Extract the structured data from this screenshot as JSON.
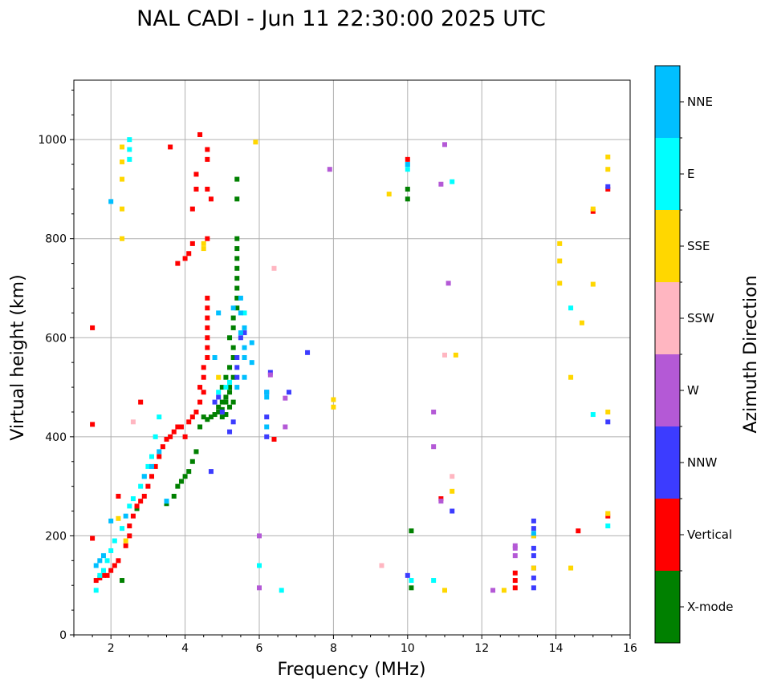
{
  "chart_data": {
    "type": "scatter",
    "title": "NAL CADI - Jun 11 22:30:00 2025 UTC",
    "xlabel": "Frequency (MHz)",
    "ylabel": "Virtual height (km)",
    "xlim": [
      1,
      16
    ],
    "ylim": [
      0,
      1120
    ],
    "xticks": [
      2,
      4,
      6,
      8,
      10,
      12,
      14,
      16
    ],
    "yticks": [
      0,
      200,
      400,
      600,
      800,
      1000
    ],
    "grid": true,
    "colorbar": {
      "title": "Azimuth Direction",
      "categories": [
        {
          "name": "X-mode",
          "color": "#008000"
        },
        {
          "name": "Vertical",
          "color": "#ff0000"
        },
        {
          "name": "NNW",
          "color": "#3c3cff"
        },
        {
          "name": "W",
          "color": "#b459d6"
        },
        {
          "name": "SSW",
          "color": "#ffb6c1"
        },
        {
          "name": "SSE",
          "color": "#ffd700"
        },
        {
          "name": "E",
          "color": "#00ffff"
        },
        {
          "name": "NNE",
          "color": "#00bfff"
        }
      ]
    },
    "series": [
      {
        "name": "X-mode",
        "points": [
          [
            2.3,
            110
          ],
          [
            2.7,
            255
          ],
          [
            3.5,
            265
          ],
          [
            3.7,
            280
          ],
          [
            3.8,
            300
          ],
          [
            3.9,
            310
          ],
          [
            4.0,
            320
          ],
          [
            4.1,
            330
          ],
          [
            4.2,
            350
          ],
          [
            4.3,
            370
          ],
          [
            4.4,
            420
          ],
          [
            4.5,
            440
          ],
          [
            4.6,
            435
          ],
          [
            4.7,
            440
          ],
          [
            4.8,
            445
          ],
          [
            4.9,
            450
          ],
          [
            5.0,
            455
          ],
          [
            5.0,
            470
          ],
          [
            5.1,
            470
          ],
          [
            5.1,
            480
          ],
          [
            5.2,
            490
          ],
          [
            5.2,
            500
          ],
          [
            5.3,
            520
          ],
          [
            5.2,
            540
          ],
          [
            5.3,
            560
          ],
          [
            5.3,
            580
          ],
          [
            5.2,
            600
          ],
          [
            5.3,
            620
          ],
          [
            5.3,
            640
          ],
          [
            5.4,
            660
          ],
          [
            5.4,
            680
          ],
          [
            5.4,
            700
          ],
          [
            5.4,
            720
          ],
          [
            5.4,
            740
          ],
          [
            5.4,
            760
          ],
          [
            5.4,
            780
          ],
          [
            5.4,
            800
          ],
          [
            5.4,
            880
          ],
          [
            5.4,
            920
          ],
          [
            10.0,
            880
          ],
          [
            10.0,
            900
          ],
          [
            10.1,
            210
          ],
          [
            10.1,
            95
          ],
          [
            4.9,
            460
          ],
          [
            5.0,
            440
          ],
          [
            5.1,
            445
          ],
          [
            5.2,
            460
          ],
          [
            5.3,
            470
          ],
          [
            5.0,
            500
          ],
          [
            5.1,
            520
          ]
        ]
      },
      {
        "name": "Vertical",
        "points": [
          [
            1.5,
            620
          ],
          [
            1.5,
            425
          ],
          [
            1.6,
            110
          ],
          [
            1.7,
            115
          ],
          [
            1.8,
            120
          ],
          [
            1.9,
            120
          ],
          [
            2.0,
            130
          ],
          [
            2.1,
            140
          ],
          [
            2.2,
            150
          ],
          [
            2.4,
            180
          ],
          [
            2.5,
            200
          ],
          [
            2.5,
            220
          ],
          [
            2.6,
            240
          ],
          [
            2.7,
            260
          ],
          [
            2.8,
            270
          ],
          [
            2.9,
            280
          ],
          [
            3.0,
            300
          ],
          [
            3.1,
            320
          ],
          [
            3.2,
            340
          ],
          [
            3.3,
            360
          ],
          [
            3.4,
            380
          ],
          [
            3.5,
            395
          ],
          [
            3.6,
            400
          ],
          [
            3.7,
            410
          ],
          [
            3.8,
            420
          ],
          [
            3.9,
            420
          ],
          [
            4.0,
            400
          ],
          [
            4.1,
            430
          ],
          [
            4.2,
            440
          ],
          [
            4.3,
            450
          ],
          [
            4.4,
            470
          ],
          [
            4.5,
            490
          ],
          [
            4.4,
            500
          ],
          [
            4.5,
            520
          ],
          [
            4.5,
            540
          ],
          [
            4.6,
            560
          ],
          [
            4.6,
            580
          ],
          [
            4.6,
            600
          ],
          [
            4.6,
            620
          ],
          [
            4.6,
            640
          ],
          [
            4.6,
            660
          ],
          [
            4.6,
            680
          ],
          [
            3.8,
            750
          ],
          [
            4.0,
            760
          ],
          [
            4.1,
            770
          ],
          [
            4.2,
            790
          ],
          [
            4.6,
            800
          ],
          [
            4.2,
            860
          ],
          [
            4.3,
            900
          ],
          [
            4.3,
            930
          ],
          [
            4.4,
            1010
          ],
          [
            4.6,
            960
          ],
          [
            4.6,
            980
          ],
          [
            3.6,
            985
          ],
          [
            4.6,
            900
          ],
          [
            4.7,
            880
          ],
          [
            2.8,
            470
          ],
          [
            2.2,
            280
          ],
          [
            1.5,
            195
          ],
          [
            6.4,
            395
          ],
          [
            10.0,
            960
          ],
          [
            12.9,
            95
          ],
          [
            12.9,
            110
          ],
          [
            12.9,
            125
          ],
          [
            15.0,
            855
          ],
          [
            15.4,
            900
          ],
          [
            14.6,
            210
          ],
          [
            15.4,
            240
          ],
          [
            10.9,
            275
          ]
        ]
      },
      {
        "name": "NNW",
        "points": [
          [
            5.2,
            410
          ],
          [
            5.3,
            430
          ],
          [
            5.0,
            450
          ],
          [
            4.9,
            480
          ],
          [
            4.8,
            470
          ],
          [
            5.4,
            520
          ],
          [
            5.4,
            540
          ],
          [
            5.4,
            560
          ],
          [
            5.5,
            600
          ],
          [
            5.6,
            610
          ],
          [
            6.2,
            400
          ],
          [
            6.2,
            440
          ],
          [
            6.2,
            490
          ],
          [
            6.3,
            530
          ],
          [
            6.8,
            490
          ],
          [
            13.4,
            95
          ],
          [
            13.4,
            115
          ],
          [
            13.4,
            135
          ],
          [
            13.4,
            160
          ],
          [
            13.4,
            175
          ],
          [
            13.4,
            200
          ],
          [
            13.4,
            215
          ],
          [
            13.4,
            230
          ],
          [
            15.4,
            430
          ],
          [
            15.4,
            905
          ],
          [
            7.3,
            570
          ],
          [
            10.0,
            120
          ],
          [
            11.2,
            250
          ],
          [
            4.7,
            330
          ]
        ]
      },
      {
        "name": "W",
        "points": [
          [
            6.3,
            525
          ],
          [
            6.7,
            420
          ],
          [
            6.7,
            478
          ],
          [
            7.9,
            940
          ],
          [
            10.7,
            380
          ],
          [
            10.7,
            450
          ],
          [
            10.9,
            910
          ],
          [
            11.0,
            990
          ],
          [
            11.1,
            710
          ],
          [
            12.3,
            90
          ],
          [
            12.9,
            160
          ],
          [
            12.9,
            175
          ],
          [
            12.9,
            180
          ],
          [
            6.0,
            95
          ],
          [
            6.0,
            200
          ],
          [
            10.9,
            270
          ]
        ]
      },
      {
        "name": "SSW",
        "points": [
          [
            6.4,
            740
          ],
          [
            11.0,
            565
          ],
          [
            11.2,
            320
          ],
          [
            9.3,
            140
          ],
          [
            2.6,
            430
          ],
          [
            15.4,
            245
          ]
        ]
      },
      {
        "name": "SSE",
        "points": [
          [
            2.3,
            860
          ],
          [
            2.3,
            920
          ],
          [
            2.3,
            955
          ],
          [
            2.3,
            985
          ],
          [
            2.3,
            800
          ],
          [
            4.5,
            790
          ],
          [
            4.5,
            780
          ],
          [
            4.9,
            520
          ],
          [
            8.0,
            460
          ],
          [
            8.0,
            475
          ],
          [
            9.5,
            890
          ],
          [
            11.0,
            90
          ],
          [
            11.2,
            290
          ],
          [
            11.3,
            565
          ],
          [
            12.6,
            90
          ],
          [
            13.4,
            135
          ],
          [
            13.4,
            200
          ],
          [
            14.1,
            710
          ],
          [
            14.1,
            755
          ],
          [
            14.1,
            790
          ],
          [
            14.4,
            135
          ],
          [
            14.4,
            520
          ],
          [
            14.7,
            630
          ],
          [
            15.0,
            708
          ],
          [
            15.0,
            860
          ],
          [
            15.4,
            940
          ],
          [
            15.4,
            965
          ],
          [
            15.4,
            450
          ],
          [
            15.4,
            245
          ],
          [
            5.9,
            995
          ],
          [
            2.2,
            235
          ],
          [
            2.4,
            190
          ]
        ]
      },
      {
        "name": "E",
        "points": [
          [
            2.5,
            1000
          ],
          [
            2.5,
            980
          ],
          [
            2.5,
            960
          ],
          [
            1.6,
            90
          ],
          [
            1.7,
            120
          ],
          [
            1.8,
            130
          ],
          [
            1.9,
            150
          ],
          [
            2.0,
            170
          ],
          [
            2.1,
            190
          ],
          [
            2.3,
            215
          ],
          [
            2.5,
            260
          ],
          [
            2.6,
            275
          ],
          [
            2.8,
            300
          ],
          [
            2.9,
            320
          ],
          [
            3.0,
            340
          ],
          [
            3.1,
            360
          ],
          [
            3.2,
            400
          ],
          [
            3.5,
            270
          ],
          [
            4.9,
            490
          ],
          [
            5.1,
            500
          ],
          [
            5.2,
            510
          ],
          [
            5.6,
            650
          ],
          [
            6.0,
            140
          ],
          [
            6.6,
            90
          ],
          [
            10.0,
            940
          ],
          [
            10.0,
            950
          ],
          [
            10.7,
            110
          ],
          [
            11.2,
            915
          ],
          [
            14.4,
            660
          ],
          [
            15.0,
            445
          ],
          [
            15.4,
            220
          ],
          [
            10.1,
            110
          ],
          [
            3.3,
            440
          ]
        ]
      },
      {
        "name": "NNE",
        "points": [
          [
            1.6,
            140
          ],
          [
            1.7,
            150
          ],
          [
            1.8,
            160
          ],
          [
            2.0,
            230
          ],
          [
            2.4,
            240
          ],
          [
            2.9,
            320
          ],
          [
            3.1,
            340
          ],
          [
            3.3,
            370
          ],
          [
            3.5,
            270
          ],
          [
            4.8,
            560
          ],
          [
            4.9,
            650
          ],
          [
            5.3,
            660
          ],
          [
            5.5,
            650
          ],
          [
            5.5,
            680
          ],
          [
            5.6,
            620
          ],
          [
            5.6,
            580
          ],
          [
            5.8,
            590
          ],
          [
            5.8,
            550
          ],
          [
            5.6,
            520
          ],
          [
            5.4,
            500
          ],
          [
            6.2,
            490
          ],
          [
            6.2,
            480
          ],
          [
            6.2,
            420
          ],
          [
            2.0,
            875
          ],
          [
            10.0,
            950
          ],
          [
            13.4,
            205
          ],
          [
            5.5,
            610
          ],
          [
            5.6,
            560
          ]
        ]
      }
    ]
  }
}
